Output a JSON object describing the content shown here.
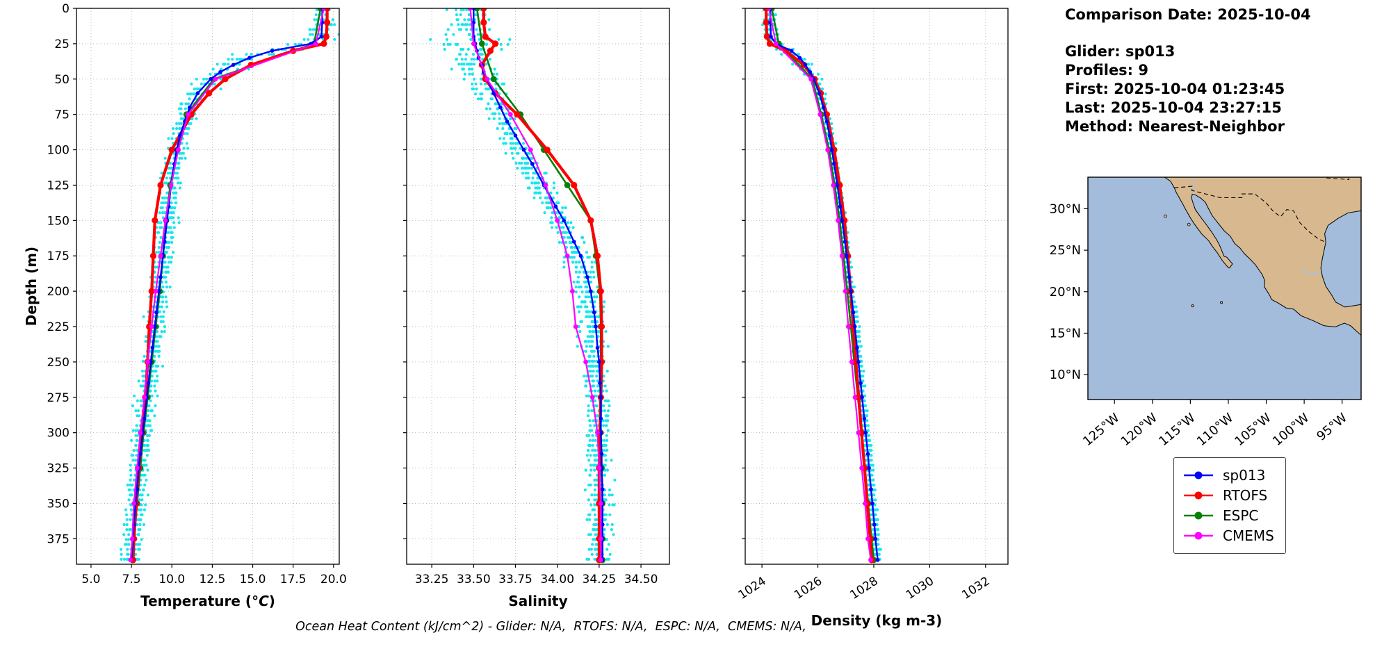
{
  "info_panel": {
    "comparison_date": "Comparison Date: 2025-10-04",
    "lines": [
      "Glider: sp013",
      "Profiles: 9",
      "First: 2025-10-04 01:23:45",
      "Last: 2025-10-04 23:27:15",
      "Method: Nearest-Neighbor"
    ]
  },
  "caption": "Ocean Heat Content (kJ/cm^2) - Glider: N/A,  RTOFS: N/A,  ESPC: N/A,  CMEMS: N/A,",
  "legend_order": [
    "sp013",
    "RTOFS",
    "ESPC",
    "CMEMS"
  ],
  "draw_order": [
    "ESPC",
    "RTOFS",
    "sp013",
    "CMEMS"
  ],
  "glider_scatter": {
    "color": "#00E4EE",
    "base_series": "sp013",
    "n_profiles": 9,
    "depth_step": 3.5,
    "params": {
      "temperature": {
        "base": 0.17,
        "extra": 3.2,
        "center": 32,
        "sigma": 15,
        "bias": 0.18
      },
      "salinity": {
        "base": 0.025,
        "extra": 2.6,
        "center": 30,
        "sigma": 22,
        "bias": 0.03
      },
      "density": {
        "base": 0.045,
        "extra": 2.8,
        "center": 30,
        "sigma": 15,
        "bias": 0.05
      }
    }
  },
  "series": {
    "sp013": {
      "label": "sp013",
      "color": "#0000FF",
      "line_width": 2.4,
      "marker_size": 2.8,
      "depths": [
        0,
        10,
        20,
        25,
        30,
        35,
        40,
        45,
        50,
        60,
        70,
        80,
        90,
        100,
        110,
        125,
        140,
        150,
        165,
        175,
        190,
        200,
        215,
        225,
        240,
        250,
        265,
        275,
        290,
        300,
        315,
        325,
        340,
        350,
        365,
        375,
        390
      ],
      "temperature": [
        19.3,
        19.3,
        19.25,
        18.6,
        16.2,
        14.8,
        13.8,
        13.0,
        12.4,
        11.6,
        11.1,
        10.8,
        10.5,
        10.3,
        10.15,
        9.95,
        9.8,
        9.7,
        9.55,
        9.45,
        9.3,
        9.2,
        9.05,
        8.95,
        8.8,
        8.7,
        8.55,
        8.45,
        8.3,
        8.2,
        8.05,
        7.95,
        7.85,
        7.75,
        7.65,
        7.6,
        7.5
      ],
      "salinity": [
        33.5,
        33.5,
        33.5,
        33.51,
        33.52,
        33.53,
        33.55,
        33.56,
        33.58,
        33.62,
        33.66,
        33.7,
        33.75,
        33.8,
        33.85,
        33.92,
        33.99,
        34.04,
        34.1,
        34.14,
        34.18,
        34.2,
        34.22,
        34.23,
        34.24,
        34.25,
        34.255,
        34.26,
        34.26,
        34.26,
        34.265,
        34.265,
        34.27,
        34.27,
        34.27,
        34.27,
        34.27
      ],
      "density": [
        1024.3,
        1024.3,
        1024.32,
        1024.5,
        1025.05,
        1025.35,
        1025.55,
        1025.72,
        1025.85,
        1026.05,
        1026.2,
        1026.32,
        1026.42,
        1026.5,
        1026.58,
        1026.7,
        1026.8,
        1026.87,
        1026.97,
        1027.03,
        1027.12,
        1027.18,
        1027.27,
        1027.32,
        1027.4,
        1027.45,
        1027.53,
        1027.58,
        1027.66,
        1027.71,
        1027.79,
        1027.83,
        1027.9,
        1027.95,
        1028.02,
        1028.06,
        1028.14
      ]
    },
    "RTOFS": {
      "label": "RTOFS",
      "color": "#FF0000",
      "line_width": 4.2,
      "marker_size": 4.6,
      "depths": [
        0,
        10,
        20,
        25,
        30,
        40,
        50,
        60,
        75,
        100,
        125,
        150,
        175,
        200,
        225,
        250,
        275,
        300,
        325,
        350,
        375,
        390
      ],
      "temperature": [
        19.6,
        19.6,
        19.55,
        19.4,
        17.5,
        14.9,
        13.3,
        12.3,
        11.2,
        10.0,
        9.3,
        8.95,
        8.85,
        8.75,
        8.6,
        8.5,
        8.35,
        8.15,
        7.95,
        7.8,
        7.65,
        7.6
      ],
      "salinity": [
        33.56,
        33.56,
        33.57,
        33.63,
        33.6,
        33.55,
        33.57,
        33.63,
        33.76,
        33.94,
        34.1,
        34.2,
        34.24,
        34.26,
        34.265,
        34.265,
        34.26,
        34.255,
        34.25,
        34.25,
        34.25,
        34.25
      ],
      "density": [
        1024.15,
        1024.15,
        1024.18,
        1024.28,
        1024.85,
        1025.5,
        1025.88,
        1026.1,
        1026.32,
        1026.58,
        1026.78,
        1026.95,
        1027.07,
        1027.17,
        1027.27,
        1027.36,
        1027.46,
        1027.56,
        1027.67,
        1027.77,
        1027.87,
        1027.92
      ]
    },
    "ESPC": {
      "label": "ESPC",
      "color": "#088008",
      "line_width": 2.6,
      "marker_size": 4.4,
      "depths": [
        0,
        25,
        50,
        75,
        100,
        125,
        150,
        175,
        200,
        225,
        250,
        275,
        300,
        325,
        350,
        375,
        390
      ],
      "temperature": [
        19.2,
        18.8,
        12.6,
        10.9,
        10.35,
        9.9,
        9.65,
        9.45,
        9.25,
        9.0,
        8.75,
        8.5,
        8.25,
        8.05,
        7.85,
        7.65,
        7.55
      ],
      "salinity": [
        33.52,
        33.55,
        33.62,
        33.78,
        33.92,
        34.06,
        34.2,
        34.23,
        34.255,
        34.26,
        34.26,
        34.26,
        34.26,
        34.265,
        34.27,
        34.27,
        34.27
      ],
      "density": [
        1024.35,
        1024.6,
        1025.8,
        1026.12,
        1026.4,
        1026.6,
        1026.78,
        1026.92,
        1027.05,
        1027.18,
        1027.3,
        1027.43,
        1027.56,
        1027.68,
        1027.8,
        1027.92,
        1028.0
      ]
    },
    "CMEMS": {
      "label": "CMEMS",
      "color": "#FF00FF",
      "line_width": 2.2,
      "marker_size": 3.4,
      "depths": [
        0,
        25,
        50,
        75,
        100,
        125,
        150,
        175,
        200,
        225,
        250,
        275,
        300,
        325,
        350,
        375,
        390
      ],
      "temperature": [
        19.4,
        18.9,
        12.7,
        11.0,
        10.4,
        9.95,
        9.6,
        9.3,
        9.0,
        8.75,
        8.5,
        8.3,
        8.05,
        7.85,
        7.65,
        7.55,
        7.45
      ],
      "salinity": [
        33.48,
        33.5,
        33.58,
        33.72,
        33.84,
        33.93,
        34.0,
        34.06,
        34.09,
        34.11,
        34.17,
        34.21,
        34.24,
        34.25,
        34.26,
        34.26,
        34.26
      ],
      "density": [
        1024.25,
        1024.5,
        1025.75,
        1026.08,
        1026.35,
        1026.55,
        1026.72,
        1026.86,
        1026.98,
        1027.09,
        1027.21,
        1027.33,
        1027.45,
        1027.57,
        1027.69,
        1027.79,
        1027.89
      ]
    }
  },
  "chart_data": [
    {
      "id": "temperature",
      "type": "line",
      "seed": 11,
      "xlabel_parts": [
        [
          "Temperature (",
          false
        ],
        [
          "°C",
          true
        ],
        [
          ")",
          false
        ]
      ],
      "ylabel": "Depth (m)",
      "xlim": [
        4.1,
        20.35
      ],
      "ylim": [
        0,
        393
      ],
      "xticks": [
        5,
        7.5,
        10,
        12.5,
        15,
        17.5,
        20
      ],
      "xtick_labels": [
        "5.0",
        "7.5",
        "10.0",
        "12.5",
        "15.0",
        "17.5",
        "20.0"
      ],
      "yticks": [
        0,
        25,
        50,
        75,
        100,
        125,
        150,
        175,
        200,
        225,
        250,
        275,
        300,
        325,
        350,
        375
      ],
      "ytick_labels": [
        "0",
        "25",
        "50",
        "75",
        "100",
        "125",
        "150",
        "175",
        "200",
        "225",
        "250",
        "275",
        "300",
        "325",
        "350",
        "375"
      ],
      "show_ytick_labels": true,
      "rotate_xticks": false
    },
    {
      "id": "salinity",
      "type": "line",
      "seed": 12,
      "xlabel_parts": [
        [
          "Salinity",
          false
        ]
      ],
      "ylabel": "",
      "xlim": [
        33.1,
        34.67
      ],
      "ylim": [
        0,
        393
      ],
      "xticks": [
        33.25,
        33.5,
        33.75,
        34.0,
        34.25,
        34.5
      ],
      "xtick_labels": [
        "33.25",
        "33.50",
        "33.75",
        "34.00",
        "34.25",
        "34.50"
      ],
      "yticks": [
        0,
        25,
        50,
        75,
        100,
        125,
        150,
        175,
        200,
        225,
        250,
        275,
        300,
        325,
        350,
        375
      ],
      "ytick_labels": [
        "0",
        "25",
        "50",
        "75",
        "100",
        "125",
        "150",
        "175",
        "200",
        "225",
        "250",
        "275",
        "300",
        "325",
        "350",
        "375"
      ],
      "show_ytick_labels": false,
      "rotate_xticks": false
    },
    {
      "id": "density",
      "type": "line",
      "seed": 13,
      "xlabel_parts": [
        [
          "Density (kg m-3)",
          false
        ]
      ],
      "ylabel": "",
      "xlim": [
        1023.4,
        1032.8
      ],
      "ylim": [
        0,
        393
      ],
      "xticks": [
        1024,
        1026,
        1028,
        1030,
        1032
      ],
      "xtick_labels": [
        "1024",
        "1026",
        "1028",
        "1030",
        "1032"
      ],
      "yticks": [
        0,
        25,
        50,
        75,
        100,
        125,
        150,
        175,
        200,
        225,
        250,
        275,
        300,
        325,
        350,
        375
      ],
      "ytick_labels": [
        "0",
        "25",
        "50",
        "75",
        "100",
        "125",
        "150",
        "175",
        "200",
        "225",
        "250",
        "275",
        "300",
        "325",
        "350",
        "375"
      ],
      "show_ytick_labels": false,
      "rotate_xticks": true
    }
  ],
  "map": {
    "colors": {
      "ocean": "#A3BCDC",
      "land": "#D8B88E",
      "river": "#9EC6E8"
    },
    "extent": {
      "lon": [
        -128.5,
        -92.5
      ],
      "lat": [
        7,
        33.8
      ]
    },
    "lat_ticks": [
      {
        "v": 30,
        "label": "30°N"
      },
      {
        "v": 25,
        "label": "25°N"
      },
      {
        "v": 20,
        "label": "20°N"
      },
      {
        "v": 15,
        "label": "15°N"
      },
      {
        "v": 10,
        "label": "10°N"
      }
    ],
    "lon_ticks": [
      {
        "v": -125,
        "label": "125°W"
      },
      {
        "v": -120,
        "label": "120°W"
      },
      {
        "v": -115,
        "label": "115°W"
      },
      {
        "v": -110,
        "label": "110°W"
      },
      {
        "v": -105,
        "label": "105°W"
      },
      {
        "v": -100,
        "label": "100°W"
      },
      {
        "v": -95,
        "label": "95°W"
      }
    ],
    "land": [
      [
        -118.4,
        33.8
      ],
      [
        -117.6,
        33.3
      ],
      [
        -117.12,
        32.53
      ],
      [
        -116.85,
        31.95
      ],
      [
        -116.6,
        31.55
      ],
      [
        -116.0,
        30.55
      ],
      [
        -115.65,
        29.95
      ],
      [
        -114.9,
        28.75
      ],
      [
        -114.3,
        27.95
      ],
      [
        -113.5,
        26.95
      ],
      [
        -112.6,
        26.15
      ],
      [
        -112.05,
        25.4
      ],
      [
        -111.45,
        24.7
      ],
      [
        -110.75,
        23.7
      ],
      [
        -110.05,
        22.95
      ],
      [
        -109.85,
        22.85
      ],
      [
        -109.45,
        23.35
      ],
      [
        -110.2,
        24.15
      ],
      [
        -110.55,
        24.25
      ],
      [
        -111.15,
        25.6
      ],
      [
        -111.55,
        26.3
      ],
      [
        -112.35,
        27.4
      ],
      [
        -113.15,
        28.4
      ],
      [
        -113.65,
        29.0
      ],
      [
        -114.35,
        29.9
      ],
      [
        -114.65,
        30.7
      ],
      [
        -114.85,
        31.3
      ],
      [
        -114.75,
        31.75
      ],
      [
        -114.3,
        31.65
      ],
      [
        -113.6,
        31.25
      ],
      [
        -113.05,
        30.8
      ],
      [
        -112.6,
        30.0
      ],
      [
        -112.15,
        29.2
      ],
      [
        -111.3,
        28.2
      ],
      [
        -110.5,
        27.3
      ],
      [
        -109.75,
        26.7
      ],
      [
        -109.15,
        25.8
      ],
      [
        -108.45,
        25.25
      ],
      [
        -107.9,
        24.6
      ],
      [
        -106.95,
        23.75
      ],
      [
        -106.4,
        23.2
      ],
      [
        -105.55,
        22.1
      ],
      [
        -105.2,
        21.35
      ],
      [
        -105.25,
        20.6
      ],
      [
        -104.55,
        19.55
      ],
      [
        -104.3,
        19.05
      ],
      [
        -103.45,
        18.65
      ],
      [
        -102.4,
        18.05
      ],
      [
        -101.4,
        17.9
      ],
      [
        -100.4,
        17.1
      ],
      [
        -98.8,
        16.5
      ],
      [
        -97.4,
        15.9
      ],
      [
        -95.9,
        15.75
      ],
      [
        -94.7,
        16.2
      ],
      [
        -93.9,
        15.9
      ],
      [
        -92.5,
        14.75
      ],
      [
        -92.5,
        18.45
      ],
      [
        -93.6,
        18.3
      ],
      [
        -94.65,
        18.15
      ],
      [
        -95.85,
        18.75
      ],
      [
        -96.35,
        19.55
      ],
      [
        -97.15,
        20.65
      ],
      [
        -97.6,
        21.85
      ],
      [
        -97.8,
        22.85
      ],
      [
        -97.6,
        24.0
      ],
      [
        -97.15,
        25.95
      ],
      [
        -97.3,
        27.0
      ],
      [
        -96.85,
        28.0
      ],
      [
        -95.5,
        28.85
      ],
      [
        -94.2,
        29.5
      ],
      [
        -92.5,
        29.75
      ],
      [
        -92.5,
        33.8
      ]
    ],
    "border": [
      [
        -117.12,
        32.53
      ],
      [
        -114.75,
        32.7
      ],
      [
        -114.8,
        32.2
      ],
      [
        -111.05,
        31.33
      ],
      [
        -108.2,
        31.33
      ],
      [
        -108.2,
        31.78
      ],
      [
        -106.5,
        31.78
      ],
      [
        -105.0,
        30.7
      ],
      [
        -104.0,
        29.6
      ],
      [
        -103.1,
        29.05
      ],
      [
        -102.3,
        29.9
      ],
      [
        -101.4,
        29.75
      ],
      [
        -100.6,
        28.35
      ],
      [
        -99.4,
        27.25
      ],
      [
        -98.1,
        26.35
      ],
      [
        -97.15,
        25.95
      ]
    ],
    "state_lines": [
      [
        [
          -94.1,
          33.8
        ],
        [
          -94.1,
          33.5
        ],
        [
          -94.6,
          33.55
        ],
        [
          -97.2,
          33.72
        ]
      ]
    ],
    "rivers": [
      [
        [
          -114.6,
          33.8
        ],
        [
          -114.5,
          33.0
        ],
        [
          -114.75,
          32.7
        ],
        [
          -114.8,
          31.8
        ]
      ],
      [
        [
          -100.5,
          22.5
        ],
        [
          -99.0,
          22.2
        ],
        [
          -97.8,
          22.3
        ]
      ]
    ],
    "islands": [
      [
        -118.3,
        29.1,
        2.0
      ],
      [
        -115.2,
        28.1,
        2.0
      ],
      [
        -110.9,
        18.7,
        1.6
      ],
      [
        -114.7,
        18.3,
        1.6
      ]
    ]
  }
}
